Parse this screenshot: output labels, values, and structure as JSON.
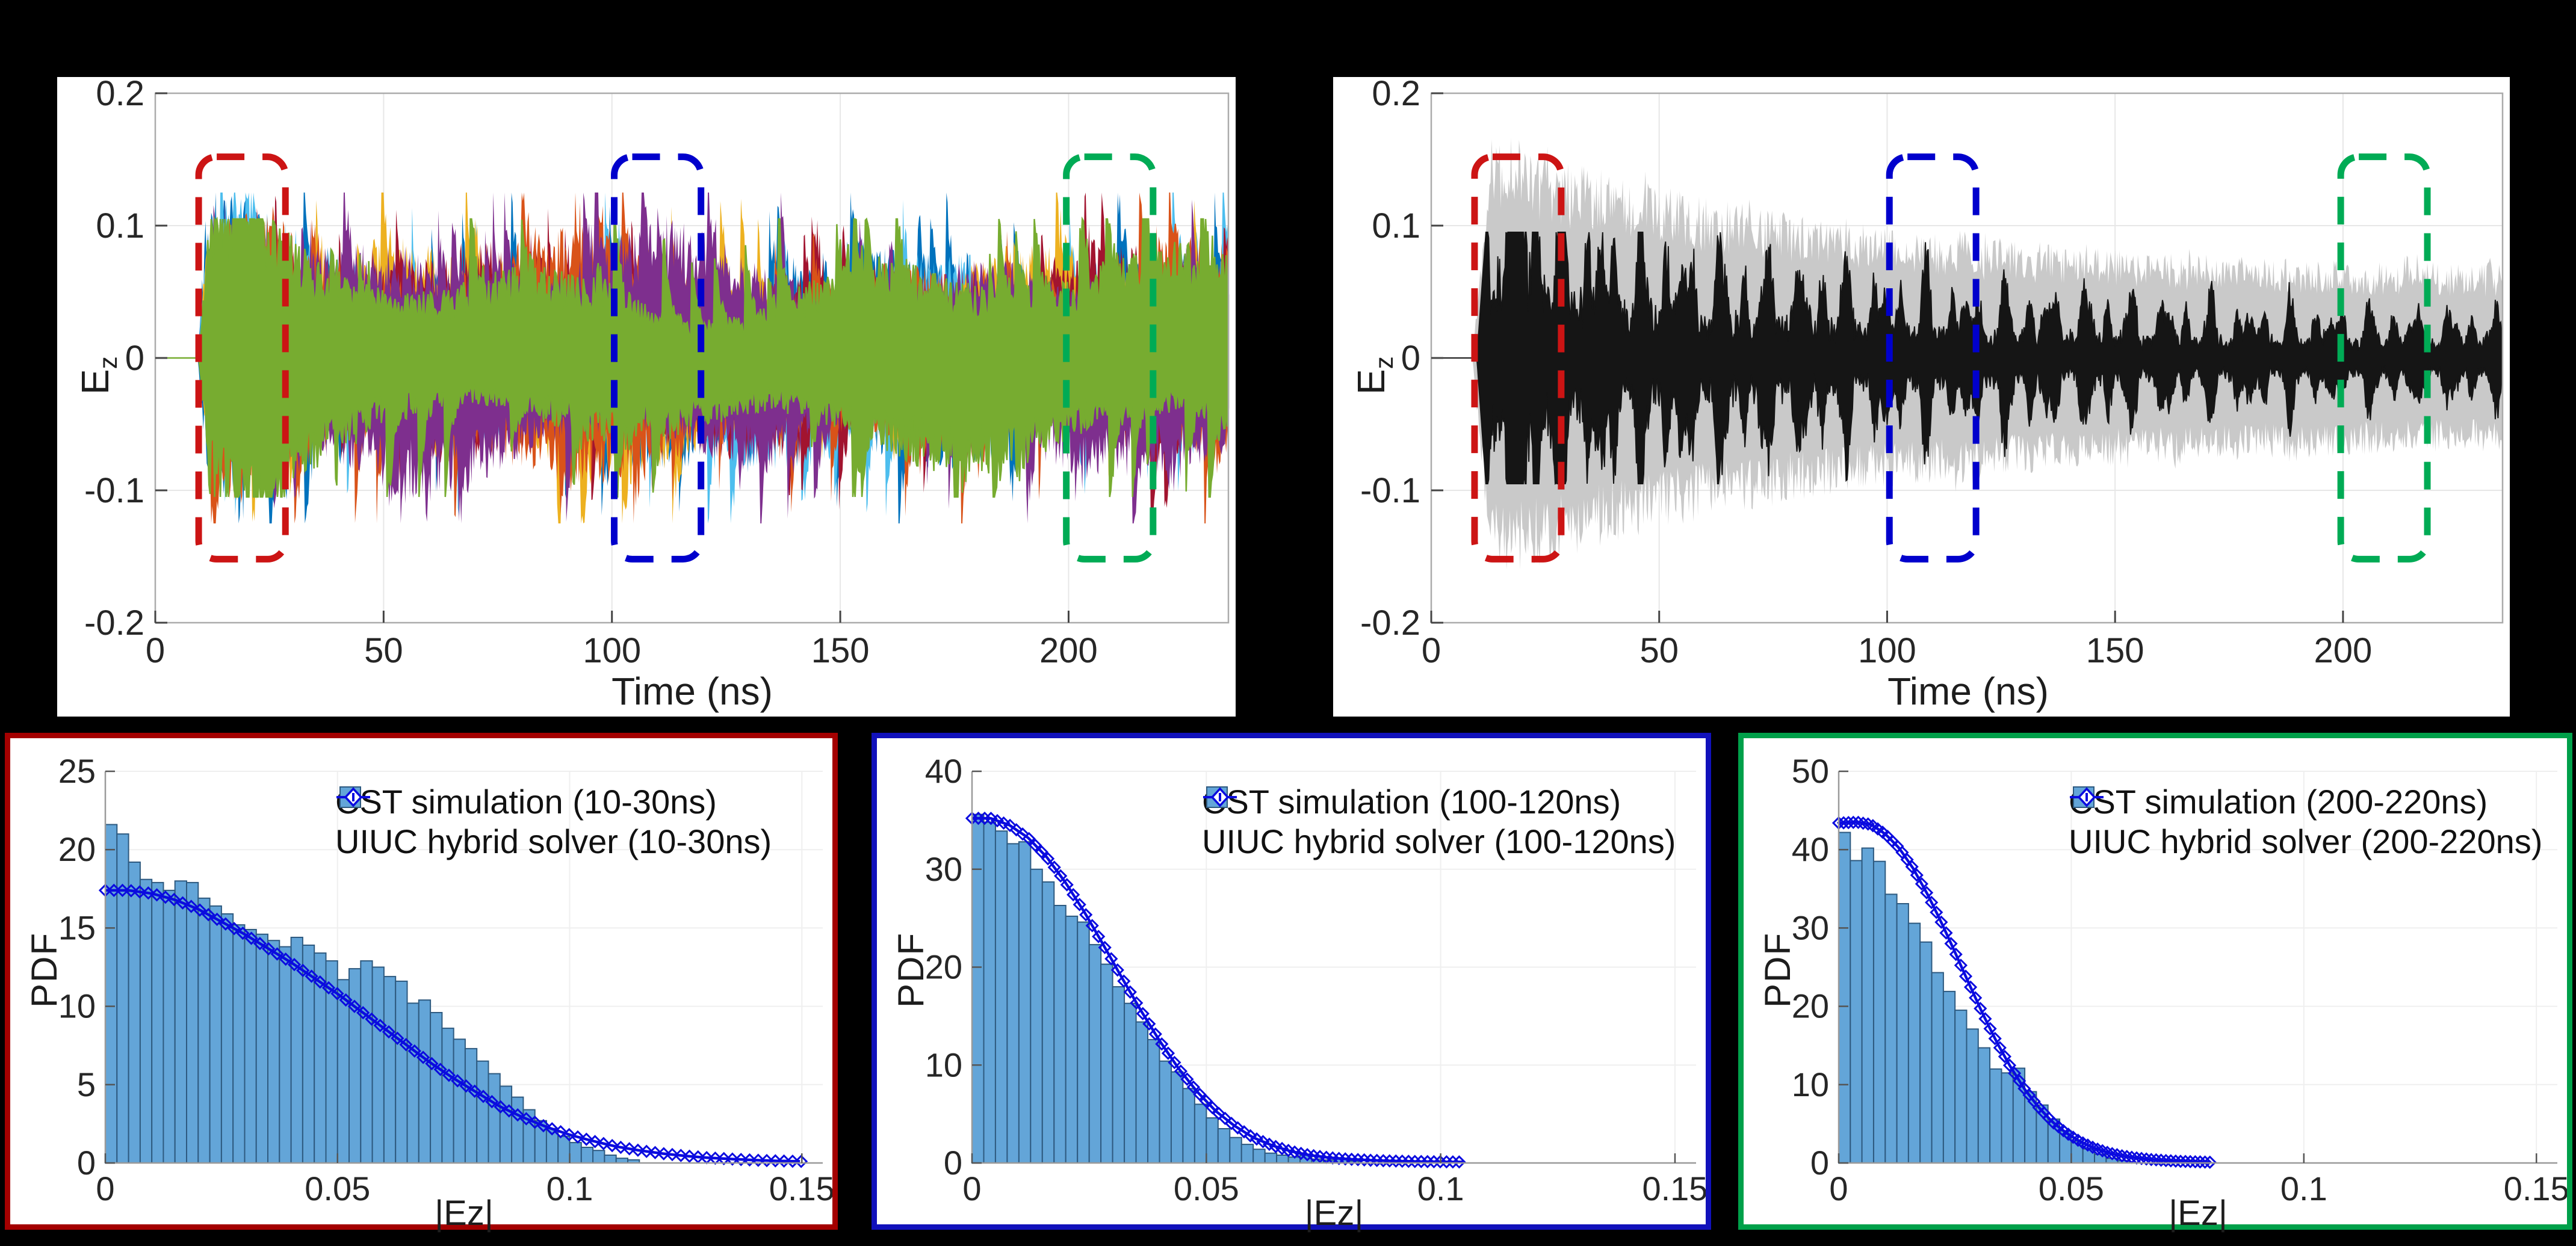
{
  "colors": {
    "background": "#000000",
    "panel_background": "#ffffff",
    "hist_fill": "#63a5d8",
    "hist_edge": "#2e5a80",
    "solver_curve_blue": "#0b0bdf",
    "border_red": "#a40000",
    "border_blue": "#1111bb",
    "border_green": "#00a04a",
    "dash_red": "#cc1414",
    "dash_blue": "#0000cc",
    "dash_green": "#00ab55",
    "gray_envelope": "#c9c9c9",
    "black_trace": "#151515",
    "waveform_series": [
      "#0072BD",
      "#4DBEEE",
      "#EDB120",
      "#A2142F",
      "#D95319",
      "#7E2F8E",
      "#77AC30"
    ]
  },
  "chart_data": [
    {
      "type": "line",
      "subtype": "waveform-multitrace",
      "xlabel": "Time (ns)",
      "ylabel_main": "E",
      "ylabel_sub": "z",
      "xlim": [
        0,
        235
      ],
      "ylim": [
        -0.2,
        0.2
      ],
      "xticks": [
        0,
        50,
        100,
        150,
        200
      ],
      "xtick_labels": [
        "0",
        "50",
        "100",
        "150",
        "200"
      ],
      "yticks": [
        0.2,
        0.1,
        0,
        -0.1,
        -0.2
      ],
      "ytick_labels": [
        "0.2",
        "0.1",
        "0",
        "-0.1",
        "-0.2"
      ],
      "grid": true,
      "series_note": "seven overlaid stochastic Ez traces, signal begins near t=9.5 ns, typical envelope 0.05, peaks to 0.12",
      "highlight_windows_ns": [
        [
          9.5,
          28.5
        ],
        [
          100.5,
          119.5
        ],
        [
          199.5,
          218.5
        ]
      ],
      "highlight_colors": [
        "#cc1414",
        "#0000cc",
        "#00ab55"
      ],
      "highlight_y_extent": [
        -0.152,
        0.152
      ]
    },
    {
      "type": "line",
      "subtype": "waveform-envelope",
      "xlabel": "Time (ns)",
      "ylabel_main": "E",
      "ylabel_sub": "z",
      "xlim": [
        0,
        235
      ],
      "ylim": [
        -0.2,
        0.2
      ],
      "xticks": [
        0,
        50,
        100,
        150,
        200
      ],
      "xtick_labels": [
        "0",
        "50",
        "100",
        "150",
        "200"
      ],
      "yticks": [
        0.2,
        0.1,
        0,
        -0.1,
        -0.2
      ],
      "ytick_labels": [
        "0.2",
        "0.1",
        "0",
        "-0.1",
        "-0.2"
      ],
      "grid": true,
      "series_note": "gray envelope peaks near 0.16 at t=15-25 ns decaying to ~0.07; black beaded trace peaks near 0.09 early, ~0.03-0.05 later",
      "highlight_windows_ns": [
        [
          9.5,
          28.5
        ],
        [
          100.5,
          119.5
        ],
        [
          199.5,
          218.5
        ]
      ],
      "highlight_colors": [
        "#cc1414",
        "#0000cc",
        "#00ab55"
      ],
      "highlight_y_extent": [
        -0.152,
        0.152
      ]
    },
    {
      "type": "bar",
      "subtype": "histogram-with-fit",
      "legend": [
        "CST simulation (10-30ns)",
        "UIUC hybrid solver (10-30ns)"
      ],
      "xlabel": "|Ez|",
      "ylabel": "PDF",
      "xlim": [
        0,
        0.1545
      ],
      "ylim": [
        0,
        25
      ],
      "xticks": [
        0,
        0.05,
        0.1,
        0.15
      ],
      "xtick_labels": [
        "0",
        "0.05",
        "0.1",
        "0.15"
      ],
      "yticks": [
        0,
        5,
        10,
        15,
        20,
        25
      ],
      "grid": true,
      "bin_start": 0,
      "bin_width": 0.0025,
      "values": [
        21.6,
        21.0,
        19.2,
        18.1,
        17.9,
        17.4,
        18.0,
        17.9,
        16.9,
        16.4,
        15.9,
        15.2,
        14.9,
        14.6,
        14.2,
        13.8,
        14.4,
        13.9,
        13.4,
        12.9,
        11.7,
        12.4,
        12.9,
        12.5,
        11.9,
        11.6,
        10.2,
        10.4,
        9.6,
        8.6,
        7.9,
        7.3,
        6.5,
        5.7,
        4.9,
        4.2,
        3.4,
        2.7,
        2.2,
        1.7,
        1.3,
        1.0,
        0.8,
        0.5,
        0.3,
        0.2
      ],
      "curve": [
        [
          0,
          17.4
        ],
        [
          0.005,
          17.4
        ],
        [
          0.01,
          17.2
        ],
        [
          0.015,
          16.8
        ],
        [
          0.02,
          16.2
        ],
        [
          0.025,
          15.4
        ],
        [
          0.03,
          14.6
        ],
        [
          0.035,
          13.7
        ],
        [
          0.04,
          12.8
        ],
        [
          0.045,
          11.8
        ],
        [
          0.05,
          10.8
        ],
        [
          0.055,
          9.7
        ],
        [
          0.06,
          8.6
        ],
        [
          0.065,
          7.5
        ],
        [
          0.07,
          6.4
        ],
        [
          0.075,
          5.4
        ],
        [
          0.08,
          4.5
        ],
        [
          0.085,
          3.6
        ],
        [
          0.09,
          2.9
        ],
        [
          0.095,
          2.3
        ],
        [
          0.1,
          1.8
        ],
        [
          0.105,
          1.4
        ],
        [
          0.11,
          1.05
        ],
        [
          0.115,
          0.8
        ],
        [
          0.12,
          0.6
        ],
        [
          0.125,
          0.45
        ],
        [
          0.13,
          0.33
        ],
        [
          0.135,
          0.25
        ],
        [
          0.14,
          0.18
        ],
        [
          0.145,
          0.13
        ],
        [
          0.15,
          0.1
        ]
      ],
      "marker_step": 0.00185
    },
    {
      "type": "bar",
      "subtype": "histogram-with-fit",
      "legend": [
        "CST simulation (100-120ns)",
        "UIUC hybrid solver (100-120ns)"
      ],
      "xlabel": "|Ez|",
      "ylabel": "PDF",
      "xlim": [
        0,
        0.1545
      ],
      "ylim": [
        0,
        40
      ],
      "xticks": [
        0,
        0.05,
        0.1,
        0.15
      ],
      "xtick_labels": [
        "0",
        "0.05",
        "0.1",
        "0.15"
      ],
      "yticks": [
        0,
        10,
        20,
        30,
        40
      ],
      "grid": true,
      "bin_start": 0,
      "bin_width": 0.0025,
      "values": [
        35.6,
        34.8,
        33.9,
        32.6,
        32.8,
        30.0,
        28.7,
        26.3,
        25.2,
        24.6,
        22.3,
        20.3,
        18.0,
        16.3,
        14.4,
        12.6,
        10.4,
        9.3,
        7.6,
        6.0,
        4.6,
        3.5,
        2.6,
        1.9,
        1.4,
        1.0,
        0.8,
        0.6,
        0.8,
        0.4,
        0.3,
        0.5,
        0.2
      ],
      "curve": [
        [
          0,
          35.2
        ],
        [
          0.004,
          35.2
        ],
        [
          0.008,
          34.5
        ],
        [
          0.012,
          33.2
        ],
        [
          0.016,
          31.2
        ],
        [
          0.02,
          28.6
        ],
        [
          0.024,
          25.6
        ],
        [
          0.028,
          22.3
        ],
        [
          0.032,
          18.9
        ],
        [
          0.036,
          15.6
        ],
        [
          0.04,
          12.5
        ],
        [
          0.044,
          9.7
        ],
        [
          0.048,
          7.3
        ],
        [
          0.052,
          5.3
        ],
        [
          0.056,
          3.8
        ],
        [
          0.06,
          2.6
        ],
        [
          0.064,
          1.8
        ],
        [
          0.068,
          1.2
        ],
        [
          0.072,
          0.8
        ],
        [
          0.076,
          0.55
        ],
        [
          0.08,
          0.4
        ],
        [
          0.085,
          0.28
        ],
        [
          0.09,
          0.2
        ],
        [
          0.095,
          0.15
        ],
        [
          0.1,
          0.12
        ],
        [
          0.105,
          0.1
        ]
      ],
      "marker_step": 0.00135
    },
    {
      "type": "bar",
      "subtype": "histogram-with-fit",
      "legend": [
        "CST simulation (200-220ns)",
        "UIUC hybrid solver (200-220ns)"
      ],
      "xlabel": "|Ez|",
      "ylabel": "PDF",
      "xlim": [
        0,
        0.1545
      ],
      "ylim": [
        0,
        50
      ],
      "xticks": [
        0,
        0.05,
        0.1,
        0.15
      ],
      "xtick_labels": [
        "0",
        "0.05",
        "0.1",
        "0.15"
      ],
      "yticks": [
        0,
        10,
        20,
        30,
        40,
        50
      ],
      "grid": true,
      "bin_start": 0,
      "bin_width": 0.0025,
      "values": [
        42.2,
        38.6,
        40.2,
        38.5,
        34.3,
        33.1,
        30.6,
        28.2,
        24.3,
        21.9,
        19.5,
        17.1,
        14.7,
        12.0,
        11.5,
        12.1,
        9.1,
        7.4,
        5.6,
        4.1,
        2.8,
        1.8,
        1.1,
        0.6,
        0.3
      ],
      "curve": [
        [
          0,
          43.4
        ],
        [
          0.004,
          43.5
        ],
        [
          0.007,
          43.2
        ],
        [
          0.01,
          42.0
        ],
        [
          0.013,
          40.2
        ],
        [
          0.016,
          37.6
        ],
        [
          0.019,
          34.4
        ],
        [
          0.022,
          30.8
        ],
        [
          0.025,
          26.9
        ],
        [
          0.028,
          22.9
        ],
        [
          0.031,
          19.0
        ],
        [
          0.034,
          15.4
        ],
        [
          0.037,
          12.2
        ],
        [
          0.04,
          9.4
        ],
        [
          0.043,
          7.1
        ],
        [
          0.046,
          5.2
        ],
        [
          0.049,
          3.8
        ],
        [
          0.052,
          2.7
        ],
        [
          0.055,
          1.9
        ],
        [
          0.058,
          1.3
        ],
        [
          0.061,
          0.9
        ],
        [
          0.064,
          0.65
        ],
        [
          0.067,
          0.45
        ],
        [
          0.07,
          0.32
        ],
        [
          0.073,
          0.22
        ],
        [
          0.076,
          0.16
        ],
        [
          0.08,
          0.1
        ]
      ],
      "marker_step": 0.00105
    }
  ]
}
